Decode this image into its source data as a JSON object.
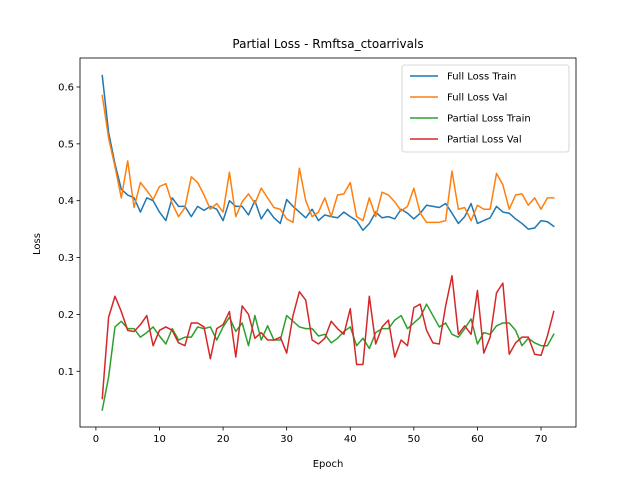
{
  "chart_data": {
    "type": "line",
    "title": "Partial Loss - Rmftsa_ctoarrivals",
    "xlabel": "Epoch",
    "ylabel": "Loss",
    "xlim": [
      -2.5,
      75.5
    ],
    "ylim": [
      0.002,
      0.651
    ],
    "xticks": [
      0,
      10,
      20,
      30,
      40,
      50,
      60,
      70
    ],
    "yticks": [
      0.1,
      0.2,
      0.3,
      0.4,
      0.5,
      0.6
    ],
    "grid": false,
    "legend_position": "top-right",
    "x": [
      1,
      2,
      3,
      4,
      5,
      6,
      7,
      8,
      9,
      10,
      11,
      12,
      13,
      14,
      15,
      16,
      17,
      18,
      19,
      20,
      21,
      22,
      23,
      24,
      25,
      26,
      27,
      28,
      29,
      30,
      31,
      32,
      33,
      34,
      35,
      36,
      37,
      38,
      39,
      40,
      41,
      42,
      43,
      44,
      45,
      46,
      47,
      48,
      49,
      50,
      51,
      52,
      53,
      54,
      55,
      56,
      57,
      58,
      59,
      60,
      61,
      62,
      63,
      64,
      65,
      66,
      67,
      68,
      69,
      70,
      71,
      72
    ],
    "series": [
      {
        "name": "Full Loss Train",
        "color": "#1f77b4",
        "values": [
          0.62,
          0.52,
          0.465,
          0.42,
          0.41,
          0.405,
          0.38,
          0.405,
          0.4,
          0.38,
          0.365,
          0.405,
          0.39,
          0.39,
          0.372,
          0.39,
          0.383,
          0.39,
          0.385,
          0.365,
          0.4,
          0.39,
          0.39,
          0.375,
          0.4,
          0.368,
          0.385,
          0.37,
          0.36,
          0.402,
          0.39,
          0.38,
          0.37,
          0.385,
          0.365,
          0.375,
          0.372,
          0.37,
          0.38,
          0.372,
          0.365,
          0.348,
          0.36,
          0.38,
          0.37,
          0.372,
          0.368,
          0.385,
          0.378,
          0.368,
          0.378,
          0.392,
          0.39,
          0.388,
          0.395,
          0.378,
          0.36,
          0.372,
          0.395,
          0.36,
          0.365,
          0.37,
          0.39,
          0.38,
          0.378,
          0.368,
          0.36,
          0.35,
          0.352,
          0.365,
          0.363,
          0.355
        ]
      },
      {
        "name": "Full Loss Val",
        "color": "#ff7f0e",
        "values": [
          0.585,
          0.51,
          0.46,
          0.405,
          0.47,
          0.388,
          0.432,
          0.418,
          0.402,
          0.425,
          0.43,
          0.395,
          0.372,
          0.388,
          0.442,
          0.432,
          0.41,
          0.385,
          0.395,
          0.38,
          0.45,
          0.372,
          0.398,
          0.412,
          0.395,
          0.422,
          0.405,
          0.388,
          0.385,
          0.368,
          0.362,
          0.457,
          0.4,
          0.372,
          0.38,
          0.405,
          0.372,
          0.41,
          0.412,
          0.432,
          0.372,
          0.365,
          0.405,
          0.372,
          0.415,
          0.41,
          0.398,
          0.382,
          0.39,
          0.422,
          0.378,
          0.362,
          0.362,
          0.362,
          0.365,
          0.452,
          0.385,
          0.388,
          0.365,
          0.392,
          0.385,
          0.385,
          0.448,
          0.428,
          0.385,
          0.41,
          0.412,
          0.392,
          0.405,
          0.385,
          0.405,
          0.405
        ]
      },
      {
        "name": "Partial Loss Train",
        "color": "#2ca02c",
        "values": [
          0.032,
          0.09,
          0.178,
          0.188,
          0.175,
          0.175,
          0.16,
          0.168,
          0.178,
          0.162,
          0.148,
          0.175,
          0.155,
          0.16,
          0.16,
          0.178,
          0.175,
          0.178,
          0.155,
          0.178,
          0.195,
          0.17,
          0.185,
          0.145,
          0.198,
          0.155,
          0.18,
          0.155,
          0.155,
          0.198,
          0.188,
          0.178,
          0.175,
          0.175,
          0.162,
          0.165,
          0.15,
          0.158,
          0.17,
          0.178,
          0.145,
          0.158,
          0.14,
          0.168,
          0.175,
          0.175,
          0.19,
          0.198,
          0.175,
          0.185,
          0.195,
          0.218,
          0.198,
          0.178,
          0.185,
          0.165,
          0.16,
          0.175,
          0.192,
          0.148,
          0.168,
          0.165,
          0.18,
          0.185,
          0.185,
          0.172,
          0.145,
          0.158,
          0.15,
          0.145,
          0.145,
          0.165
        ]
      },
      {
        "name": "Partial Loss Val",
        "color": "#d62728",
        "values": [
          0.052,
          0.195,
          0.232,
          0.205,
          0.172,
          0.17,
          0.182,
          0.198,
          0.145,
          0.172,
          0.178,
          0.172,
          0.15,
          0.145,
          0.185,
          0.185,
          0.178,
          0.122,
          0.175,
          0.182,
          0.205,
          0.125,
          0.215,
          0.2,
          0.158,
          0.168,
          0.155,
          0.155,
          0.16,
          0.132,
          0.198,
          0.24,
          0.225,
          0.155,
          0.148,
          0.158,
          0.188,
          0.175,
          0.165,
          0.21,
          0.112,
          0.112,
          0.232,
          0.148,
          0.178,
          0.19,
          0.125,
          0.155,
          0.145,
          0.212,
          0.218,
          0.172,
          0.15,
          0.148,
          0.215,
          0.268,
          0.165,
          0.18,
          0.165,
          0.242,
          0.132,
          0.16,
          0.238,
          0.255,
          0.13,
          0.15,
          0.16,
          0.16,
          0.13,
          0.128,
          0.162,
          0.205
        ]
      }
    ]
  }
}
